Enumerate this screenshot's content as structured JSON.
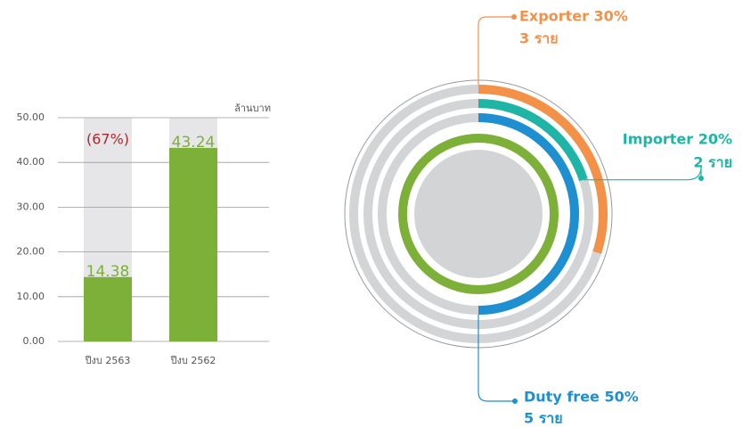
{
  "chart_data": [
    {
      "type": "bar",
      "y_label": "ล้านบาท",
      "categories": [
        "ปีงบ 2563",
        "ปีงบ 2562"
      ],
      "values": [
        14.38,
        43.24
      ],
      "color": "#7cb039",
      "ylim": [
        0,
        50
      ],
      "yticks": [
        {
          "value": 0,
          "label": "0.00"
        },
        {
          "value": 10,
          "label": "10.00"
        },
        {
          "value": 20,
          "label": "20.00"
        },
        {
          "value": 30,
          "label": "30.00"
        },
        {
          "value": 40,
          "label": "40.00"
        },
        {
          "value": 50,
          "label": "50.00"
        }
      ],
      "grid": true,
      "annotation": "(67%)"
    },
    {
      "type": "radial",
      "series": [
        {
          "label": "Exporter 30%",
          "value": 30,
          "count": 3,
          "count_label": "3 ราย",
          "color": "#f39149"
        },
        {
          "label": "Importer 20%",
          "value": 20,
          "count": 2,
          "count_label": "2 ราย",
          "color": "#1fb5a6"
        },
        {
          "label": "Duty free 50%",
          "value": 50,
          "count": 5,
          "count_label": "5 ราย",
          "color": "#1e8fd0"
        }
      ]
    }
  ]
}
